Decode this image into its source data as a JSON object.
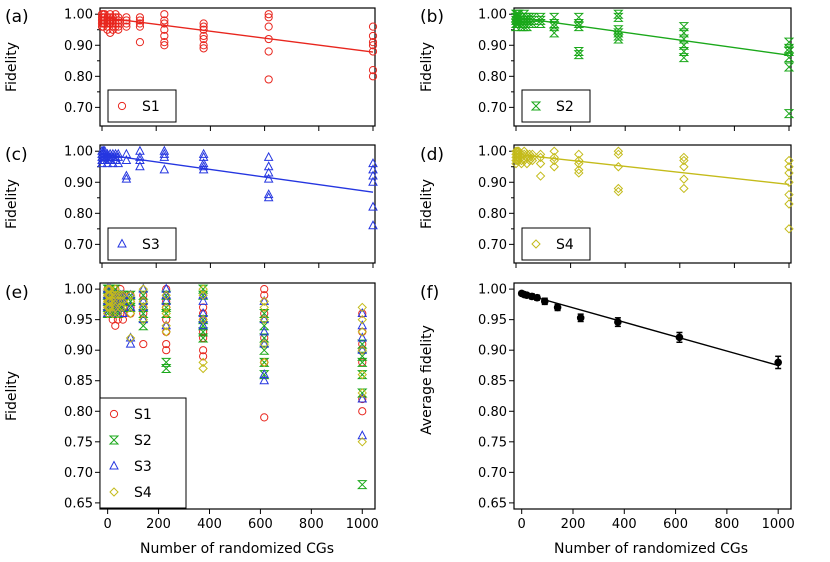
{
  "figure": {
    "xlabel": "Number of randomized CGs",
    "ylabel_fidelity": "Fidelity",
    "ylabel_average": "Average fidelity"
  },
  "colors": {
    "S1": "#e8261e",
    "S2": "#1aa81a",
    "S3": "#2536e0",
    "S4": "#c4bb1a",
    "average": "#000000"
  },
  "chart_data": [
    {
      "type": "scatter",
      "panel": "(a)",
      "series": [
        {
          "name": "S1",
          "marker": "circle",
          "color": "#e8261e",
          "x": [
            0,
            0,
            0,
            0,
            0,
            5,
            5,
            5,
            5,
            5,
            10,
            10,
            10,
            10,
            20,
            20,
            20,
            20,
            20,
            30,
            30,
            30,
            30,
            30,
            40,
            40,
            40,
            40,
            40,
            50,
            50,
            50,
            50,
            60,
            60,
            60,
            60,
            60,
            90,
            90,
            90,
            90,
            140,
            140,
            140,
            140,
            140,
            230,
            230,
            230,
            230,
            230,
            230,
            230,
            375,
            375,
            375,
            375,
            375,
            375,
            375,
            615,
            615,
            615,
            615,
            615,
            615,
            1000,
            1000,
            1000,
            1000,
            1000,
            1000,
            1000
          ],
          "y": [
            1.0,
            0.99,
            0.98,
            0.97,
            0.96,
            1.0,
            0.99,
            0.98,
            0.97,
            0.96,
            1.0,
            0.99,
            0.98,
            0.97,
            0.99,
            0.98,
            0.97,
            0.96,
            0.95,
            1.0,
            0.99,
            0.98,
            0.97,
            0.94,
            0.99,
            0.98,
            0.97,
            0.96,
            0.95,
            1.0,
            0.99,
            0.97,
            0.96,
            0.99,
            0.98,
            0.97,
            0.96,
            0.95,
            0.99,
            0.98,
            0.97,
            0.96,
            0.99,
            0.98,
            0.97,
            0.96,
            0.91,
            1.0,
            0.98,
            0.97,
            0.95,
            0.93,
            0.91,
            0.9,
            0.97,
            0.96,
            0.95,
            0.93,
            0.92,
            0.9,
            0.89,
            1.0,
            0.99,
            0.96,
            0.92,
            0.88,
            0.79,
            0.96,
            0.93,
            0.91,
            0.9,
            0.88,
            0.82,
            0.8
          ]
        }
      ],
      "fit": {
        "x": [
          0,
          1000
        ],
        "y": [
          0.99,
          0.878
        ]
      },
      "xlim": [
        0,
        1000
      ],
      "ylim": [
        0.64,
        1.02
      ],
      "yticks": [
        "0.70",
        "0.80",
        "0.90",
        "1.00"
      ],
      "legend": "bottom-left"
    },
    {
      "type": "scatter",
      "panel": "(b)",
      "series": [
        {
          "name": "S2",
          "marker": "hourglass",
          "color": "#1aa81a",
          "x": [
            0,
            0,
            0,
            0,
            0,
            5,
            5,
            5,
            5,
            10,
            10,
            10,
            10,
            20,
            20,
            20,
            20,
            30,
            30,
            30,
            30,
            40,
            40,
            40,
            50,
            50,
            50,
            60,
            60,
            60,
            90,
            90,
            90,
            140,
            140,
            140,
            140,
            230,
            230,
            230,
            230,
            230,
            375,
            375,
            375,
            375,
            375,
            375,
            615,
            615,
            615,
            615,
            615,
            615,
            1000,
            1000,
            1000,
            1000,
            1000,
            1000
          ],
          "y": [
            1.0,
            0.99,
            0.98,
            0.97,
            0.96,
            1.0,
            0.99,
            0.98,
            0.97,
            1.0,
            0.99,
            0.98,
            0.97,
            0.99,
            0.98,
            0.97,
            0.96,
            1.0,
            0.98,
            0.97,
            0.96,
            0.99,
            0.98,
            0.96,
            0.99,
            0.98,
            0.97,
            0.99,
            0.98,
            0.97,
            0.99,
            0.98,
            0.97,
            0.99,
            0.97,
            0.96,
            0.94,
            0.99,
            0.97,
            0.96,
            0.88,
            0.87,
            1.0,
            0.99,
            0.95,
            0.94,
            0.93,
            0.92,
            0.96,
            0.94,
            0.92,
            0.9,
            0.88,
            0.86,
            0.91,
            0.89,
            0.88,
            0.86,
            0.83,
            0.68
          ]
        }
      ],
      "fit": {
        "x": [
          0,
          1000
        ],
        "y": [
          0.99,
          0.868
        ]
      },
      "xlim": [
        0,
        1000
      ],
      "ylim": [
        0.64,
        1.02
      ],
      "yticks": [
        "0.70",
        "0.80",
        "0.90",
        "1.00"
      ],
      "legend": "bottom-left"
    },
    {
      "type": "scatter",
      "panel": "(c)",
      "series": [
        {
          "name": "S3",
          "marker": "triangle",
          "color": "#2536e0",
          "x": [
            0,
            0,
            0,
            0,
            0,
            5,
            5,
            5,
            5,
            10,
            10,
            10,
            10,
            20,
            20,
            20,
            20,
            30,
            30,
            30,
            40,
            40,
            40,
            50,
            50,
            50,
            60,
            60,
            60,
            90,
            90,
            90,
            90,
            140,
            140,
            140,
            140,
            230,
            230,
            230,
            230,
            375,
            375,
            375,
            375,
            375,
            615,
            615,
            615,
            615,
            615,
            615,
            1000,
            1000,
            1000,
            1000,
            1000,
            1000
          ],
          "y": [
            1.0,
            0.99,
            0.98,
            0.97,
            0.96,
            1.0,
            0.99,
            0.98,
            0.97,
            1.0,
            0.99,
            0.98,
            0.97,
            0.99,
            0.98,
            0.97,
            0.96,
            0.99,
            0.98,
            0.97,
            0.99,
            0.98,
            0.96,
            0.99,
            0.98,
            0.97,
            0.99,
            0.98,
            0.96,
            0.99,
            0.97,
            0.92,
            0.91,
            1.0,
            0.98,
            0.97,
            0.95,
            1.0,
            0.99,
            0.98,
            0.94,
            0.99,
            0.98,
            0.96,
            0.95,
            0.94,
            0.98,
            0.95,
            0.93,
            0.91,
            0.86,
            0.85,
            0.96,
            0.94,
            0.92,
            0.9,
            0.82,
            0.76
          ]
        }
      ],
      "fit": {
        "x": [
          0,
          1000
        ],
        "y": [
          0.99,
          0.868
        ]
      },
      "xlim": [
        0,
        1000
      ],
      "ylim": [
        0.64,
        1.02
      ],
      "yticks": [
        "0.70",
        "0.80",
        "0.90",
        "1.00"
      ],
      "legend": "bottom-left"
    },
    {
      "type": "scatter",
      "panel": "(d)",
      "series": [
        {
          "name": "S4",
          "marker": "diamond",
          "color": "#c4bb1a",
          "x": [
            0,
            0,
            0,
            0,
            0,
            5,
            5,
            5,
            5,
            10,
            10,
            10,
            10,
            20,
            20,
            20,
            20,
            30,
            30,
            30,
            40,
            40,
            40,
            50,
            50,
            50,
            60,
            60,
            60,
            90,
            90,
            90,
            90,
            140,
            140,
            140,
            140,
            230,
            230,
            230,
            230,
            230,
            375,
            375,
            375,
            375,
            375,
            615,
            615,
            615,
            615,
            615,
            1000,
            1000,
            1000,
            1000,
            1000,
            1000,
            1000
          ],
          "y": [
            1.0,
            0.99,
            0.98,
            0.97,
            0.96,
            1.0,
            0.99,
            0.98,
            0.97,
            1.0,
            0.99,
            0.98,
            0.97,
            0.99,
            0.98,
            0.97,
            0.96,
            1.0,
            0.99,
            0.97,
            0.99,
            0.98,
            0.96,
            0.99,
            0.98,
            0.97,
            0.99,
            0.98,
            0.97,
            0.99,
            0.98,
            0.96,
            0.92,
            1.0,
            0.98,
            0.97,
            0.95,
            0.99,
            0.97,
            0.96,
            0.94,
            0.93,
            1.0,
            0.99,
            0.95,
            0.88,
            0.87,
            0.98,
            0.97,
            0.95,
            0.91,
            0.88,
            0.97,
            0.95,
            0.93,
            0.9,
            0.86,
            0.83,
            0.75
          ]
        }
      ],
      "fit": {
        "x": [
          0,
          1000
        ],
        "y": [
          0.99,
          0.893
        ]
      },
      "xlim": [
        0,
        1000
      ],
      "ylim": [
        0.64,
        1.02
      ],
      "yticks": [
        "0.70",
        "0.80",
        "0.90",
        "1.00"
      ],
      "legend": "bottom-left"
    },
    {
      "type": "scatter",
      "panel": "(e)",
      "series_from_panels": [
        "(a)",
        "(b)",
        "(c)",
        "(d)"
      ],
      "xlim": [
        -30,
        1050
      ],
      "ylim": [
        0.64,
        1.01
      ],
      "yticks": [
        "0.65",
        "0.70",
        "0.75",
        "0.80",
        "0.85",
        "0.90",
        "0.95",
        "1.00"
      ],
      "xticks": [
        "0",
        "200",
        "400",
        "600",
        "800",
        "1000"
      ],
      "legend": "bottom-left",
      "legend_entries": [
        "S1",
        "S2",
        "S3",
        "S4"
      ]
    },
    {
      "type": "scatter",
      "panel": "(f)",
      "series": [
        {
          "name": "Average fidelity",
          "marker": "filled-circle",
          "color": "#000000",
          "x": [
            0,
            10,
            20,
            40,
            60,
            90,
            140,
            230,
            375,
            615,
            1000
          ],
          "y": [
            0.993,
            0.991,
            0.99,
            0.988,
            0.986,
            0.98,
            0.97,
            0.953,
            0.946,
            0.921,
            0.88
          ],
          "err": [
            0.003,
            0.003,
            0.003,
            0.004,
            0.004,
            0.005,
            0.005,
            0.006,
            0.007,
            0.008,
            0.01
          ]
        }
      ],
      "fit": {
        "x": [
          0,
          1000
        ],
        "y": [
          0.993,
          0.875
        ]
      },
      "xlim": [
        -30,
        1050
      ],
      "ylim": [
        0.64,
        1.01
      ],
      "yticks": [
        "0.65",
        "0.70",
        "0.75",
        "0.80",
        "0.85",
        "0.90",
        "0.95",
        "1.00"
      ],
      "xticks": [
        "0",
        "200",
        "400",
        "600",
        "800",
        "1000"
      ]
    }
  ]
}
